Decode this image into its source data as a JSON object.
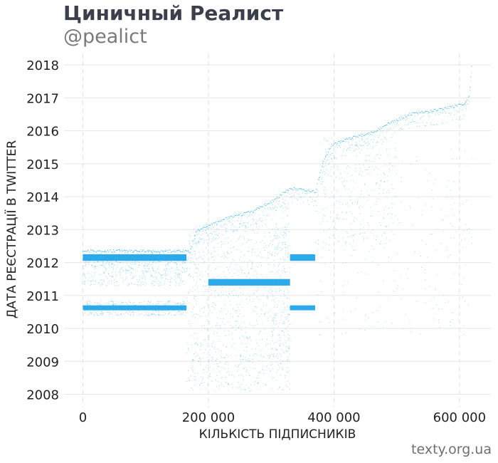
{
  "header": {
    "title": "Циничный Реалист",
    "subtitle": "@pealict"
  },
  "footer": {
    "source": "texty.org.ua"
  },
  "colors": {
    "points": "#1aa3e8",
    "grid": "#e6e6e6",
    "vgrid": "#e0e0e0"
  },
  "chart_data": {
    "type": "scatter",
    "xlabel": "КІЛЬКІСТЬ ПІДПИСНИКІВ",
    "ylabel": "ДАТА РЕЄСТРАЦІЇ В TWITTER",
    "xlim": [
      -30000,
      650000
    ],
    "ylim": [
      2007.6,
      2018.35
    ],
    "x_ticks": [
      {
        "value": 0,
        "label": "0"
      },
      {
        "value": 200000,
        "label": "200 000"
      },
      {
        "value": 400000,
        "label": "400 000"
      },
      {
        "value": 600000,
        "label": "600 000"
      }
    ],
    "y_ticks": [
      {
        "value": 2008,
        "label": "2008"
      },
      {
        "value": 2009,
        "label": "2009"
      },
      {
        "value": 2010,
        "label": "2010"
      },
      {
        "value": 2011,
        "label": "2011"
      },
      {
        "value": 2012,
        "label": "2012"
      },
      {
        "value": 2013,
        "label": "2013"
      },
      {
        "value": 2014,
        "label": "2014"
      },
      {
        "value": 2015,
        "label": "2015"
      },
      {
        "value": 2016,
        "label": "2016"
      },
      {
        "value": 2017,
        "label": "2017"
      },
      {
        "value": 2018,
        "label": "2018"
      }
    ],
    "grid": {
      "horizontal": true,
      "vertical_dashed": true
    },
    "legend": "none",
    "dense_bands": [
      {
        "x0": 0,
        "x1": 165000,
        "y0": 2012.05,
        "y1": 2012.25
      },
      {
        "x0": 0,
        "x1": 165000,
        "y0": 2010.55,
        "y1": 2010.7
      },
      {
        "x0": 330000,
        "x1": 370000,
        "y0": 2012.05,
        "y1": 2012.25
      },
      {
        "x0": 330000,
        "x1": 370000,
        "y0": 2010.55,
        "y1": 2010.7
      },
      {
        "x0": 200000,
        "x1": 330000,
        "y0": 2011.3,
        "y1": 2011.5
      }
    ],
    "scatter_regions": [
      {
        "x0": 0,
        "x1": 165000,
        "y0": 2011.3,
        "y1": 2012.4,
        "density": 0.35
      },
      {
        "x0": 0,
        "x1": 165000,
        "y0": 2010.4,
        "y1": 2010.85,
        "density": 0.25
      },
      {
        "x0": 165000,
        "x1": 330000,
        "y0": 2009.0,
        "y1": 2013.2,
        "density": 0.55
      },
      {
        "x0": 165000,
        "x1": 330000,
        "y0": 2008.1,
        "y1": 2009.2,
        "density": 0.15
      },
      {
        "x0": 300000,
        "x1": 330000,
        "y0": 2009.2,
        "y1": 2013.9,
        "density": 0.5
      },
      {
        "x0": 370000,
        "x1": 620000,
        "y0": 2009.8,
        "y1": 2015.5,
        "density": 0.12
      },
      {
        "x0": 380000,
        "x1": 500000,
        "y0": 2012.5,
        "y1": 2015.8,
        "density": 0.25
      }
    ],
    "frontier": [
      {
        "x": 0,
        "y": 2012.4
      },
      {
        "x": 170000,
        "y": 2012.4
      },
      {
        "x": 180000,
        "y": 2013.0
      },
      {
        "x": 230000,
        "y": 2013.4
      },
      {
        "x": 270000,
        "y": 2013.6
      },
      {
        "x": 300000,
        "y": 2013.9
      },
      {
        "x": 330000,
        "y": 2014.3
      },
      {
        "x": 370000,
        "y": 2014.2
      },
      {
        "x": 380000,
        "y": 2015.0
      },
      {
        "x": 395000,
        "y": 2015.6
      },
      {
        "x": 420000,
        "y": 2015.8
      },
      {
        "x": 460000,
        "y": 2016.0
      },
      {
        "x": 490000,
        "y": 2016.3
      },
      {
        "x": 520000,
        "y": 2016.55
      },
      {
        "x": 570000,
        "y": 2016.7
      },
      {
        "x": 605000,
        "y": 2016.85
      },
      {
        "x": 615000,
        "y": 2017.1
      },
      {
        "x": 620000,
        "y": 2018.3
      }
    ]
  }
}
